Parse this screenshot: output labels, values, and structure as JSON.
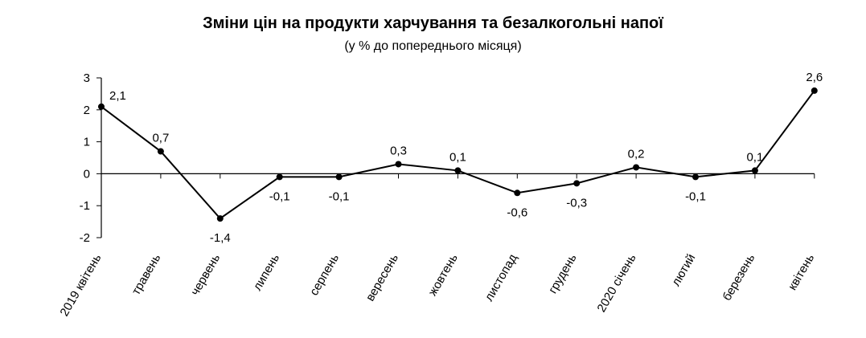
{
  "chart_data": {
    "type": "line",
    "title": "Зміни цін на продукти харчування та безалкогольні напої",
    "subtitle": "(у % до попереднього місяця)",
    "categories": [
      "2019 квітень",
      "травень",
      "червень",
      "липень",
      "серпень",
      "вересень",
      "жовтень",
      "листопад",
      "грудень",
      "2020 січень",
      "лютий",
      "березень",
      "квітень"
    ],
    "values": [
      2.1,
      0.7,
      -1.4,
      -0.1,
      -0.1,
      0.3,
      0.1,
      -0.6,
      -0.3,
      0.2,
      -0.1,
      0.1,
      2.6
    ],
    "data_labels": [
      "2,1",
      "0,7",
      "-1,4",
      "-0,1",
      "-0,1",
      "0,3",
      "0,1",
      "-0,6",
      "-0,3",
      "0,2",
      "-0,1",
      "0,1",
      "2,6"
    ],
    "y_ticks": [
      3,
      2,
      1,
      0,
      -1,
      -2
    ],
    "ylim": [
      -2,
      3
    ],
    "grid": false,
    "legend": "none",
    "line_color": "#000000"
  }
}
